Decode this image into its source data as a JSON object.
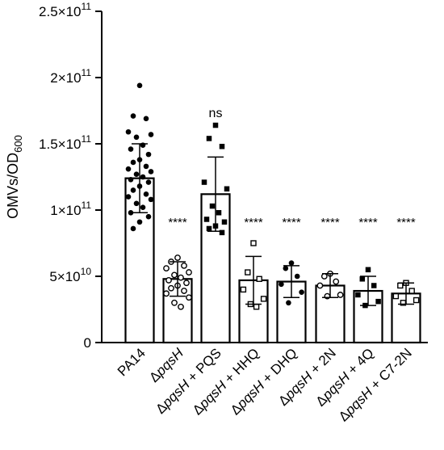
{
  "chart_data": {
    "type": "bar",
    "title": "",
    "xlabel": "",
    "ylabel": {
      "main": "OMVs/OD",
      "sub": "600"
    },
    "ylim": [
      0,
      250000000000.0
    ],
    "yticks": [
      {
        "value": 0,
        "base": "0",
        "exp": ""
      },
      {
        "value": 50000000000.0,
        "base": "5×10",
        "exp": "10"
      },
      {
        "value": 100000000000.0,
        "base": "1×10",
        "exp": "11"
      },
      {
        "value": 150000000000.0,
        "base": "1.5×10",
        "exp": "11"
      },
      {
        "value": 200000000000.0,
        "base": "2×10",
        "exp": "11"
      },
      {
        "value": 250000000000.0,
        "base": "2.5×10",
        "exp": "11"
      }
    ],
    "grid": false,
    "categories": [
      {
        "prefix": "",
        "italic": "",
        "suffix": "PA14"
      },
      {
        "prefix": "Δ",
        "italic": "pqsH",
        "suffix": ""
      },
      {
        "prefix": "Δ",
        "italic": "pqsH",
        "suffix": " + PQS"
      },
      {
        "prefix": "Δ",
        "italic": "pqsH",
        "suffix": " + HHQ"
      },
      {
        "prefix": "Δ",
        "italic": "pqsH",
        "suffix": " + DHQ"
      },
      {
        "prefix": "Δ",
        "italic": "pqsH",
        "suffix": " + 2N"
      },
      {
        "prefix": "Δ",
        "italic": "pqsH",
        "suffix": " + 4Q"
      },
      {
        "prefix": "Δ",
        "italic": "pqsH",
        "suffix": " + C7-2N"
      }
    ],
    "bars": [
      {
        "mean": 124000000000.0,
        "sd": 26000000000.0,
        "significance": "",
        "marker": "filled-circle",
        "points": [
          194000000000.0,
          171000000000.0,
          169000000000.0,
          159000000000.0,
          157000000000.0,
          155000000000.0,
          149000000000.0,
          146000000000.0,
          142000000000.0,
          138000000000.0,
          136000000000.0,
          133000000000.0,
          131000000000.0,
          129000000000.0,
          127000000000.0,
          125000000000.0,
          123000000000.0,
          121000000000.0,
          118000000000.0,
          115000000000.0,
          112000000000.0,
          110000000000.0,
          108000000000.0,
          105000000000.0,
          102000000000.0,
          98000000000.0,
          95000000000.0,
          91000000000.0,
          86000000000.0
        ]
      },
      {
        "mean": 48000000000.0,
        "sd": 13000000000.0,
        "significance": "****",
        "marker": "open-circle",
        "points": [
          64000000000.0,
          61000000000.0,
          58000000000.0,
          56000000000.0,
          53000000000.0,
          51000000000.0,
          49000000000.0,
          47000000000.0,
          45000000000.0,
          43000000000.0,
          41000000000.0,
          39000000000.0,
          37000000000.0,
          34000000000.0,
          30000000000.0,
          27000000000.0
        ]
      },
      {
        "mean": 112000000000.0,
        "sd": 28000000000.0,
        "significance": "ns",
        "marker": "filled-square",
        "points": [
          164000000000.0,
          154000000000.0,
          148000000000.0,
          121000000000.0,
          116000000000.0,
          103000000000.0,
          98000000000.0,
          93000000000.0,
          91000000000.0,
          88000000000.0,
          86000000000.0,
          83000000000.0
        ]
      },
      {
        "mean": 47000000000.0,
        "sd": 18000000000.0,
        "significance": "****",
        "marker": "open-square",
        "points": [
          75000000000.0,
          53000000000.0,
          48000000000.0,
          40000000000.0,
          33000000000.0,
          29000000000.0,
          27000000000.0
        ]
      },
      {
        "mean": 46000000000.0,
        "sd": 12000000000.0,
        "significance": "****",
        "marker": "filled-circle",
        "points": [
          60000000000.0,
          56000000000.0,
          50000000000.0,
          44000000000.0,
          38000000000.0,
          30000000000.0
        ]
      },
      {
        "mean": 43000000000.0,
        "sd": 9000000000.0,
        "significance": "****",
        "marker": "open-circle",
        "points": [
          52000000000.0,
          50000000000.0,
          46000000000.0,
          43000000000.0,
          36000000000.0,
          35000000000.0
        ]
      },
      {
        "mean": 39000000000.0,
        "sd": 11000000000.0,
        "significance": "****",
        "marker": "filled-square",
        "points": [
          55000000000.0,
          48000000000.0,
          43000000000.0,
          36000000000.0,
          31000000000.0,
          28000000000.0
        ]
      },
      {
        "mean": 37000000000.0,
        "sd": 8000000000.0,
        "significance": "****",
        "marker": "open-square",
        "points": [
          45000000000.0,
          43000000000.0,
          39000000000.0,
          35000000000.0,
          32000000000.0,
          30000000000.0
        ]
      }
    ]
  }
}
